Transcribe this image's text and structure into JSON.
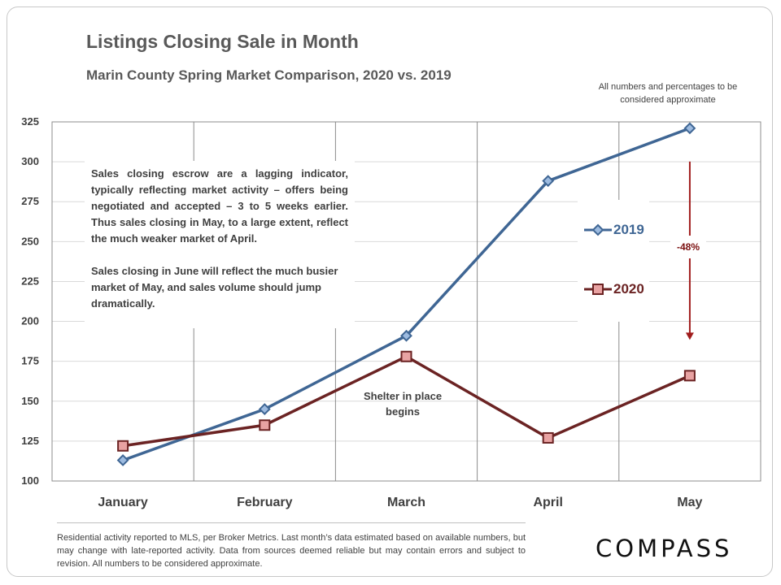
{
  "header": {
    "title": "Listings Closing Sale in Month",
    "subtitle": "Marin County Spring Market Comparison,  2020 vs. 2019",
    "approx_note": "All numbers and percentages to be considered approximate"
  },
  "annotations": {
    "lag_paragraph_1": "Sales closing escrow are a lagging indicator, typically reflecting market activity – offers being negotiated and accepted – 3 to 5 weeks earlier.  Thus sales closing in May, to a large extent, reflect the much weaker market of April.",
    "lag_paragraph_2": "Sales closing in June will reflect the much busier market of May, and sales volume should jump dramatically.",
    "shelter": "Shelter in place begins",
    "change_pct": "-48%"
  },
  "footer": {
    "note": "Residential activity reported to MLS, per Broker Metrics. Last month’s data estimated based on available numbers, but may change with late-reported activity. Data from sources deemed reliable but may contain errors and subject to revision. All numbers to be considered approximate.",
    "logo": "COMPASS"
  },
  "chart_data": {
    "type": "line",
    "title": "Listings Closing Sale in Month",
    "categories": [
      "January",
      "February",
      "March",
      "April",
      "May"
    ],
    "series": [
      {
        "name": "2019",
        "values": [
          113,
          145,
          191,
          288,
          321
        ],
        "color": "#3f6694",
        "marker": "diamond"
      },
      {
        "name": "2020",
        "values": [
          122,
          135,
          178,
          127,
          166
        ],
        "color": "#6b2323",
        "marker": "square",
        "marker_fill": "#e8a2a2"
      }
    ],
    "ylim": [
      100,
      325
    ],
    "yticks": [
      100,
      125,
      150,
      175,
      200,
      225,
      250,
      275,
      300,
      325
    ],
    "grid": "horizontal and vertical",
    "legend_position": "right",
    "arrow_color": "#a01c1c"
  }
}
